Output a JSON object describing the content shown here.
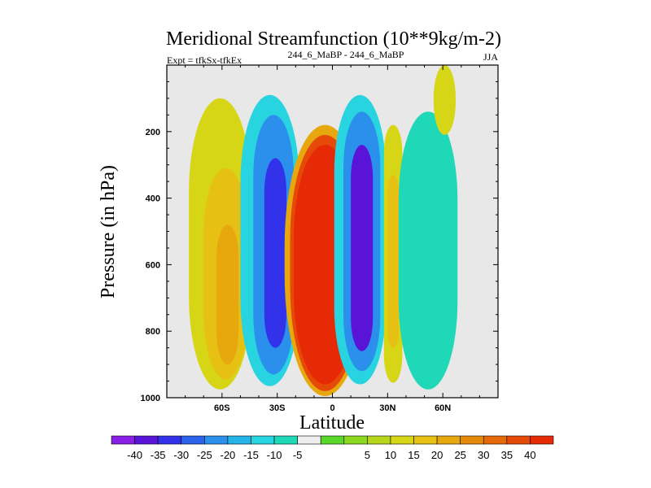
{
  "chart_data": {
    "type": "contour",
    "title": "Meridional Streamfunction (10**9kg/m-2)",
    "subtitle_left": "Expt = tfkSx-tfkEx",
    "subtitle_center": "244_6_MaBP - 244_6_MaBP",
    "subtitle_right": "JJA",
    "xlabel": "Latitude",
    "ylabel": "Pressure (in hPa)",
    "xlim": [
      -90,
      90
    ],
    "ylim": [
      1000,
      0
    ],
    "x_ticks": [
      {
        "value": -60,
        "label": "60S"
      },
      {
        "value": -30,
        "label": "30S"
      },
      {
        "value": 0,
        "label": "0"
      },
      {
        "value": 30,
        "label": "30N"
      },
      {
        "value": 60,
        "label": "60N"
      }
    ],
    "y_ticks": [
      {
        "value": 200,
        "label": "200"
      },
      {
        "value": 400,
        "label": "400"
      },
      {
        "value": 600,
        "label": "600"
      },
      {
        "value": 800,
        "label": "800"
      },
      {
        "value": 1000,
        "label": "1000"
      }
    ],
    "colorbar": {
      "colors": [
        "#8a1ee6",
        "#5a14d8",
        "#3232ea",
        "#2a62ec",
        "#2a90ec",
        "#24b4ea",
        "#28d4e0",
        "#1ed8b8",
        "#eeeeee",
        "#5ad82a",
        "#8cd81e",
        "#b6d61c",
        "#d6d616",
        "#e6c012",
        "#e6a80e",
        "#e68a0c",
        "#e66a0a",
        "#e64a08",
        "#e62a06"
      ],
      "labels": [
        "-40",
        "-35",
        "-30",
        "-25",
        "-20",
        "-15",
        "-10",
        "-5",
        "5",
        "10",
        "15",
        "20",
        "25",
        "30",
        "35",
        "40"
      ]
    },
    "cells": [
      {
        "lat": -61,
        "p": 570,
        "half_width": 17,
        "top": 100,
        "bottom": 975,
        "value": 10
      },
      {
        "lat": -58,
        "p": 620,
        "half_width": 12,
        "top": 310,
        "bottom": 945,
        "value": 15
      },
      {
        "lat": -57,
        "p": 720,
        "half_width": 6,
        "top": 480,
        "bottom": 900,
        "value": 20
      },
      {
        "lat": -34,
        "p": 540,
        "half_width": 16,
        "top": 90,
        "bottom": 965,
        "value": -10
      },
      {
        "lat": -32,
        "p": 560,
        "half_width": 11,
        "top": 150,
        "bottom": 930,
        "value": -20
      },
      {
        "lat": -31,
        "p": 560,
        "half_width": 6,
        "top": 280,
        "bottom": 850,
        "value": -30
      },
      {
        "lat": -4,
        "p": 580,
        "half_width": 22,
        "top": 180,
        "bottom": 995,
        "value": 20
      },
      {
        "lat": -4,
        "p": 600,
        "half_width": 19,
        "top": 210,
        "bottom": 980,
        "value": 35
      },
      {
        "lat": -4,
        "p": 610,
        "half_width": 17,
        "top": 240,
        "bottom": 960,
        "value": 40
      },
      {
        "lat": 15,
        "p": 520,
        "half_width": 14,
        "top": 90,
        "bottom": 960,
        "value": -10
      },
      {
        "lat": 16,
        "p": 520,
        "half_width": 10,
        "top": 140,
        "bottom": 920,
        "value": -20
      },
      {
        "lat": 16,
        "p": 500,
        "half_width": 6,
        "top": 240,
        "bottom": 860,
        "value": -35
      },
      {
        "lat": 33,
        "p": 580,
        "half_width": 5,
        "top": 180,
        "bottom": 955,
        "value": 10
      },
      {
        "lat": 33,
        "p": 600,
        "half_width": 3,
        "top": 330,
        "bottom": 850,
        "value": 15
      },
      {
        "lat": 52,
        "p": 580,
        "half_width": 16,
        "top": 140,
        "bottom": 975,
        "value": -5
      },
      {
        "lat": 61,
        "p": 90,
        "half_width": 6,
        "top": 0,
        "bottom": 210,
        "value": 10
      }
    ]
  }
}
